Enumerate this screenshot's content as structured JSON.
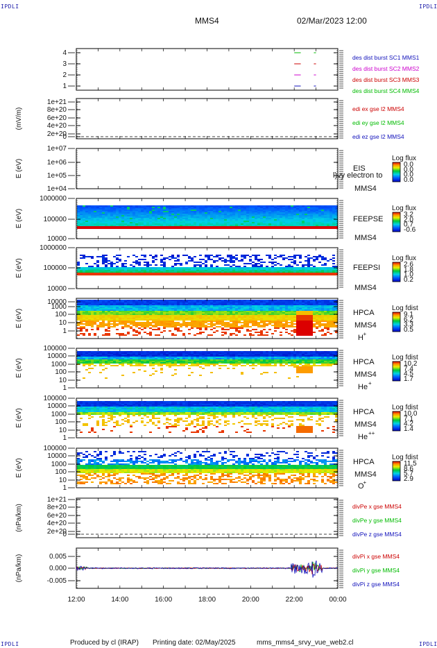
{
  "header": {
    "corner_label": "IPDLI",
    "mission": "MMS4",
    "datetime": "02/Mar/2023 12:00"
  },
  "footer": {
    "produced_by": "Produced by cl (IRAP)",
    "printing_date": "Printing date: 02/May/2025",
    "script_name": "mms_mms4_srvy_vue_web2.cl"
  },
  "x_ticks": [
    "12:00",
    "14:00",
    "16:00",
    "18:00",
    "20:00",
    "22:00",
    "00:00"
  ],
  "colors": {
    "blue": "#1111bb",
    "red": "#cc0000",
    "magenta": "#cc00cc",
    "green": "#00bb00"
  },
  "chart_data": [
    {
      "type": "line",
      "ylabel": "",
      "y_ticks": [
        "4",
        "3",
        "2",
        "1"
      ],
      "ylim": [
        0.6,
        4.4
      ],
      "legend": [
        {
          "text": "des dist burst SC1 MMS1",
          "color": "#1111bb"
        },
        {
          "text": "des dist burst SC2 MMS2",
          "color": "#cc00cc"
        },
        {
          "text": "des dist burst SC3 MMS3",
          "color": "#cc0000"
        },
        {
          "text": "des dist burst SC4 MMS4",
          "color": "#00bb00"
        }
      ],
      "series": [
        {
          "level": 4,
          "color": "#00bb00",
          "x": [
            22.0,
            22.3,
            22.9,
            23.0
          ]
        },
        {
          "level": 3,
          "color": "#cc0000",
          "x": [
            22.0,
            22.3,
            22.9,
            23.0
          ]
        },
        {
          "level": 2,
          "color": "#cc00cc",
          "x": [
            22.0,
            22.3,
            22.9,
            23.0
          ]
        },
        {
          "level": 1,
          "color": "#1111bb",
          "x": [
            22.0,
            22.3,
            22.9,
            23.0
          ]
        }
      ]
    },
    {
      "type": "line",
      "ylabel": "(mV/m)",
      "y_ticks": [
        "1e+21",
        "8e+20",
        "6e+20",
        "4e+20",
        "2e+20",
        "0"
      ],
      "ylim": [
        -0.1,
        1.05
      ],
      "legend": [
        {
          "text": "edi ex gse l2 MMS4",
          "color": "#cc0000"
        },
        {
          "text": "edi ey gse l2 MMS4",
          "color": "#00bb00"
        },
        {
          "text": "edi ez gse l2 MMS4",
          "color": "#1111bb"
        }
      ]
    },
    {
      "type": "heatmap",
      "ylabel": "E (eV)",
      "y_ticks": [
        "1e+07",
        "1e+06",
        "1e+05",
        "1e+04"
      ],
      "instrument": "EIS",
      "instrument_extra": "l)vy electron to",
      "spacecraft": "MMS4",
      "colorbar_title": "Log flux",
      "colorbar_ticks": [
        "0.0",
        "0.0",
        "0.0",
        "0.0"
      ]
    },
    {
      "type": "heatmap",
      "ylabel": "E (eV)",
      "y_ticks": [
        "1000000",
        "100000",
        "10000"
      ],
      "instrument": "FEEPSE",
      "spacecraft": "MMS4",
      "colorbar_title": "Log flux",
      "colorbar_ticks": [
        "3.2",
        "2.0",
        "0.7",
        "-0.6"
      ]
    },
    {
      "type": "heatmap",
      "ylabel": "E (eV)",
      "y_ticks": [
        "1000000",
        "100000",
        "10000"
      ],
      "instrument": "FEEPSI",
      "spacecraft": "MMS4",
      "colorbar_title": "Log flux",
      "colorbar_ticks": [
        "2.6",
        "1.8",
        "1.0",
        "0.2"
      ]
    },
    {
      "type": "heatmap",
      "ylabel": "E (eV)",
      "y_ticks": [
        "10000",
        "1000",
        "100",
        "10",
        "1"
      ],
      "instrument": "HPCA",
      "spacecraft": "MMS4",
      "species": "H",
      "species_charge": "+",
      "colorbar_title": "Log fdist",
      "colorbar_ticks": [
        "9.1",
        "6.2",
        "3.3",
        "0.5"
      ]
    },
    {
      "type": "heatmap",
      "ylabel": "E (eV)",
      "y_ticks": [
        "100000",
        "10000",
        "1000",
        "100",
        "10",
        "1"
      ],
      "instrument": "HPCA",
      "spacecraft": "MMS4",
      "species": "He",
      "species_charge": "+",
      "colorbar_title": "Log fdist",
      "colorbar_ticks": [
        "10.2",
        "7.4",
        "4.5",
        "1.7"
      ]
    },
    {
      "type": "heatmap",
      "ylabel": "E (eV)",
      "y_ticks": [
        "100000",
        "10000",
        "1000",
        "100",
        "10",
        "1"
      ],
      "instrument": "HPCA",
      "spacecraft": "MMS4",
      "species": "He",
      "species_charge": "++",
      "colorbar_title": "Log fdist",
      "colorbar_ticks": [
        "10.0",
        "7.1",
        "4.2",
        "1.4"
      ]
    },
    {
      "type": "heatmap",
      "ylabel": "E (eV)",
      "y_ticks": [
        "100000",
        "10000",
        "1000",
        "100",
        "10",
        "1"
      ],
      "instrument": "HPCA",
      "spacecraft": "MMS4",
      "species": "O",
      "species_charge": "+",
      "colorbar_title": "Log fdist",
      "colorbar_ticks": [
        "11.5",
        "8.6",
        "5.7",
        "2.9"
      ]
    },
    {
      "type": "line",
      "ylabel": "(nPa/km)",
      "y_ticks": [
        "1e+21",
        "8e+20",
        "6e+20",
        "4e+20",
        "2e+20",
        "0"
      ],
      "ylim": [
        -0.1,
        1.05
      ],
      "legend": [
        {
          "text": "divPe x gse MMS4",
          "color": "#cc0000"
        },
        {
          "text": "divPe y gse MMS4",
          "color": "#00bb00"
        },
        {
          "text": "divPe z gse MMS4",
          "color": "#1111bb"
        }
      ]
    },
    {
      "type": "line",
      "ylabel": "(nPa/km)",
      "y_ticks": [
        "0.005",
        "0.000",
        "-0.005"
      ],
      "ylim": [
        -0.008,
        0.008
      ],
      "legend": [
        {
          "text": "divPi x gse MMS4",
          "color": "#cc0000"
        },
        {
          "text": "divPi y gse MMS4",
          "color": "#00bb00"
        },
        {
          "text": "divPi z gse MMS4",
          "color": "#1111bb"
        }
      ]
    }
  ]
}
